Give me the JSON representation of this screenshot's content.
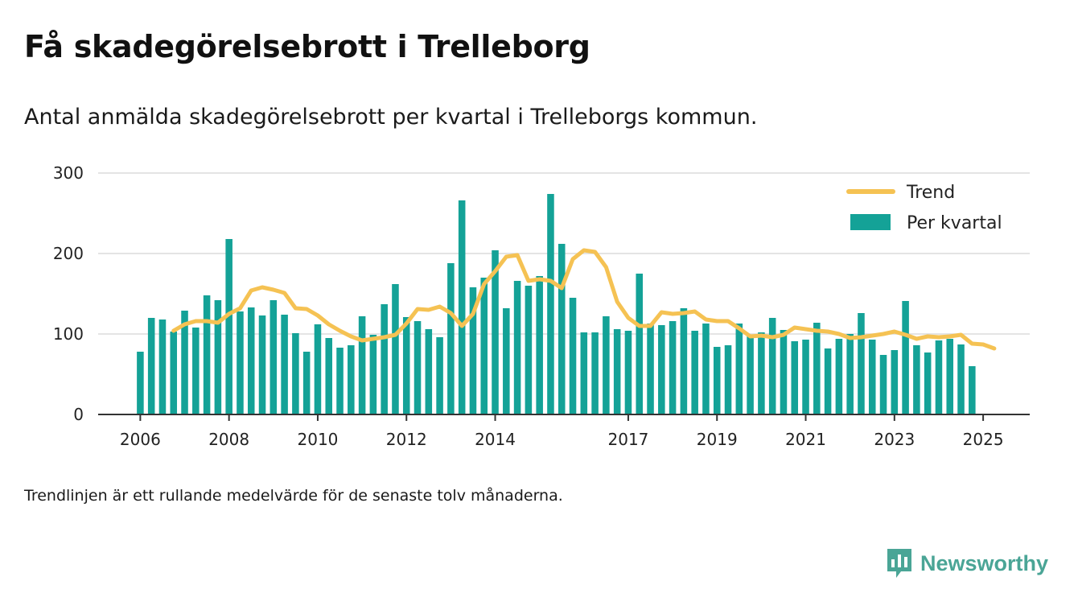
{
  "title": "Få skadegörelsebrott i Trelleborg",
  "subtitle": "Antal anmälda skadegörelsebrott per kvartal i Trelleborgs kommun.",
  "footnote": "Trendlinjen är ett rullande medelvärde för de senaste tolv månaderna.",
  "brand": {
    "name": "Newsworthy",
    "icon": "newsworthy-chart-logo-icon"
  },
  "colors": {
    "bars": "#14a297",
    "trend": "#f5c253",
    "grid": "#dcdcdc",
    "axis": "#333333",
    "brand": "#4aa596"
  },
  "chart_data": {
    "type": "bar",
    "x_start_year": 2006,
    "x_ticks": [
      "2006",
      "2008",
      "2010",
      "2012",
      "2014",
      "2017",
      "2019",
      "2021",
      "2023",
      "2025"
    ],
    "x_tick_values": [
      2006,
      2008,
      2010,
      2012,
      2014,
      2017,
      2019,
      2021,
      2023,
      2025
    ],
    "xlim": [
      2005.05,
      2026.05
    ],
    "ylim": [
      0,
      300
    ],
    "y_ticks": [
      0,
      100,
      200,
      300
    ],
    "grid": true,
    "legend": {
      "placement": "top-right"
    },
    "series": [
      {
        "name": "Per kvartal",
        "kind": "bar",
        "values": [
          78,
          120,
          118,
          103,
          129,
          108,
          148,
          142,
          218,
          128,
          133,
          123,
          142,
          124,
          101,
          78,
          112,
          95,
          83,
          86,
          122,
          99,
          137,
          162,
          121,
          116,
          106,
          96,
          188,
          266,
          158,
          170,
          204,
          132,
          166,
          160,
          172,
          274,
          212,
          145,
          102,
          102,
          122,
          106,
          104,
          175,
          113,
          111,
          116,
          132,
          104,
          113,
          84,
          86,
          113,
          97,
          102,
          120,
          105,
          91,
          93,
          114,
          82,
          94,
          100,
          126,
          93,
          74,
          80,
          141,
          86,
          77,
          92,
          94,
          87,
          60
        ]
      },
      {
        "name": "Trend",
        "kind": "line",
        "start_index": 3,
        "values": [
          104,
          112,
          116,
          116,
          114,
          125,
          132,
          154,
          158,
          155,
          151,
          132,
          131,
          123,
          112,
          104,
          97,
          92,
          94,
          96,
          99,
          113,
          131,
          130,
          134,
          126,
          110,
          125,
          162,
          178,
          196,
          198,
          166,
          168,
          166,
          157,
          193,
          204,
          202,
          183,
          140,
          120,
          110,
          110,
          127,
          125,
          126,
          128,
          118,
          116,
          116,
          107,
          97,
          98,
          96,
          99,
          108,
          106,
          104,
          103,
          100,
          95,
          96,
          98,
          100,
          103,
          99,
          94,
          97,
          96,
          97,
          99,
          88,
          87,
          82
        ]
      }
    ]
  }
}
